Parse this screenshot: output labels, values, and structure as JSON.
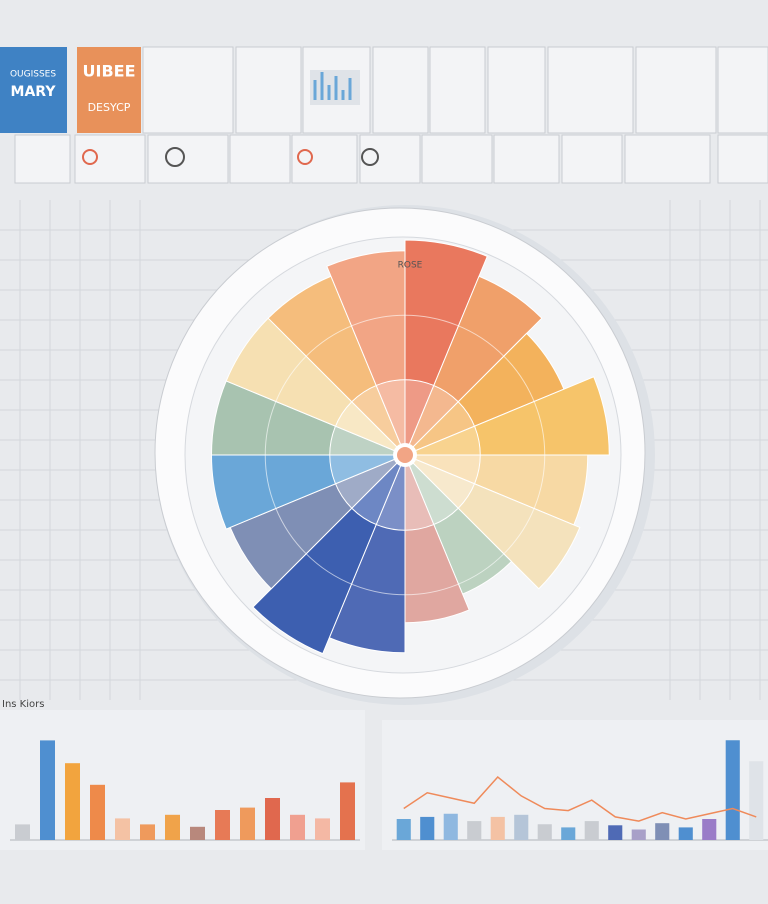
{
  "header": {
    "tile_1": [
      "OUGISSES",
      "MARY"
    ],
    "tile_2": [
      "UIBEE",
      "DESYCP"
    ]
  },
  "chart_data": [
    {
      "type": "rose",
      "label": "ROSE",
      "rlim": [
        0,
        100
      ],
      "values": [
        100,
        90,
        80,
        95,
        85,
        88,
        70,
        78,
        92,
        100,
        88,
        90,
        90,
        90,
        90,
        95
      ],
      "colors": [
        "#e9785e",
        "#f0a06a",
        "#f3b25c",
        "#f6c46a",
        "#f7d9a4",
        "#f4e2bc",
        "#bcd2c0",
        "#e0a7a0",
        "#4f6ab5",
        "#3d5fb0",
        "#7f8fb5",
        "#6aa7d8",
        "#a8c3b0",
        "#f6e0b2",
        "#f5bd7c",
        "#f2a585"
      ]
    },
    {
      "type": "bar",
      "label": "Ins Kiors",
      "ylim": [
        0,
        100
      ],
      "values": [
        13,
        83,
        64,
        46,
        18,
        13,
        21,
        11,
        25,
        27,
        35,
        21,
        18,
        48
      ],
      "colors": [
        "#c9ccd1",
        "#4f8fd0",
        "#f2a43e",
        "#ee8a4a",
        "#f4c2a4",
        "#ef9a5c",
        "#f0a34a",
        "#b8887c",
        "#e77a56",
        "#ef9a5c",
        "#e0684e",
        "#f0a090",
        "#f4b8a4",
        "#e4724e"
      ]
    },
    {
      "type": "bar",
      "ylim": [
        0,
        100
      ],
      "values": [
        20,
        22,
        25,
        18,
        22,
        24,
        15,
        12,
        18,
        14,
        10,
        16,
        12,
        20,
        95,
        75
      ],
      "colors": [
        "#6aa7d8",
        "#4f8fd0",
        "#8fb8e0",
        "#c9ccd1",
        "#f4c2a4",
        "#b5c5d8",
        "#c9ccd1",
        "#6aa7d8",
        "#c9ccd1",
        "#4f6ab5",
        "#a8a0c8",
        "#7f8fb5",
        "#4f8fd0",
        "#9a7cc8",
        "#4f8fd0",
        "#dfe3e8"
      ],
      "line": {
        "color": "#ef8a5a",
        "values": [
          30,
          45,
          40,
          35,
          60,
          42,
          30,
          28,
          38,
          22,
          18,
          26,
          20,
          25,
          30,
          22
        ]
      }
    }
  ]
}
